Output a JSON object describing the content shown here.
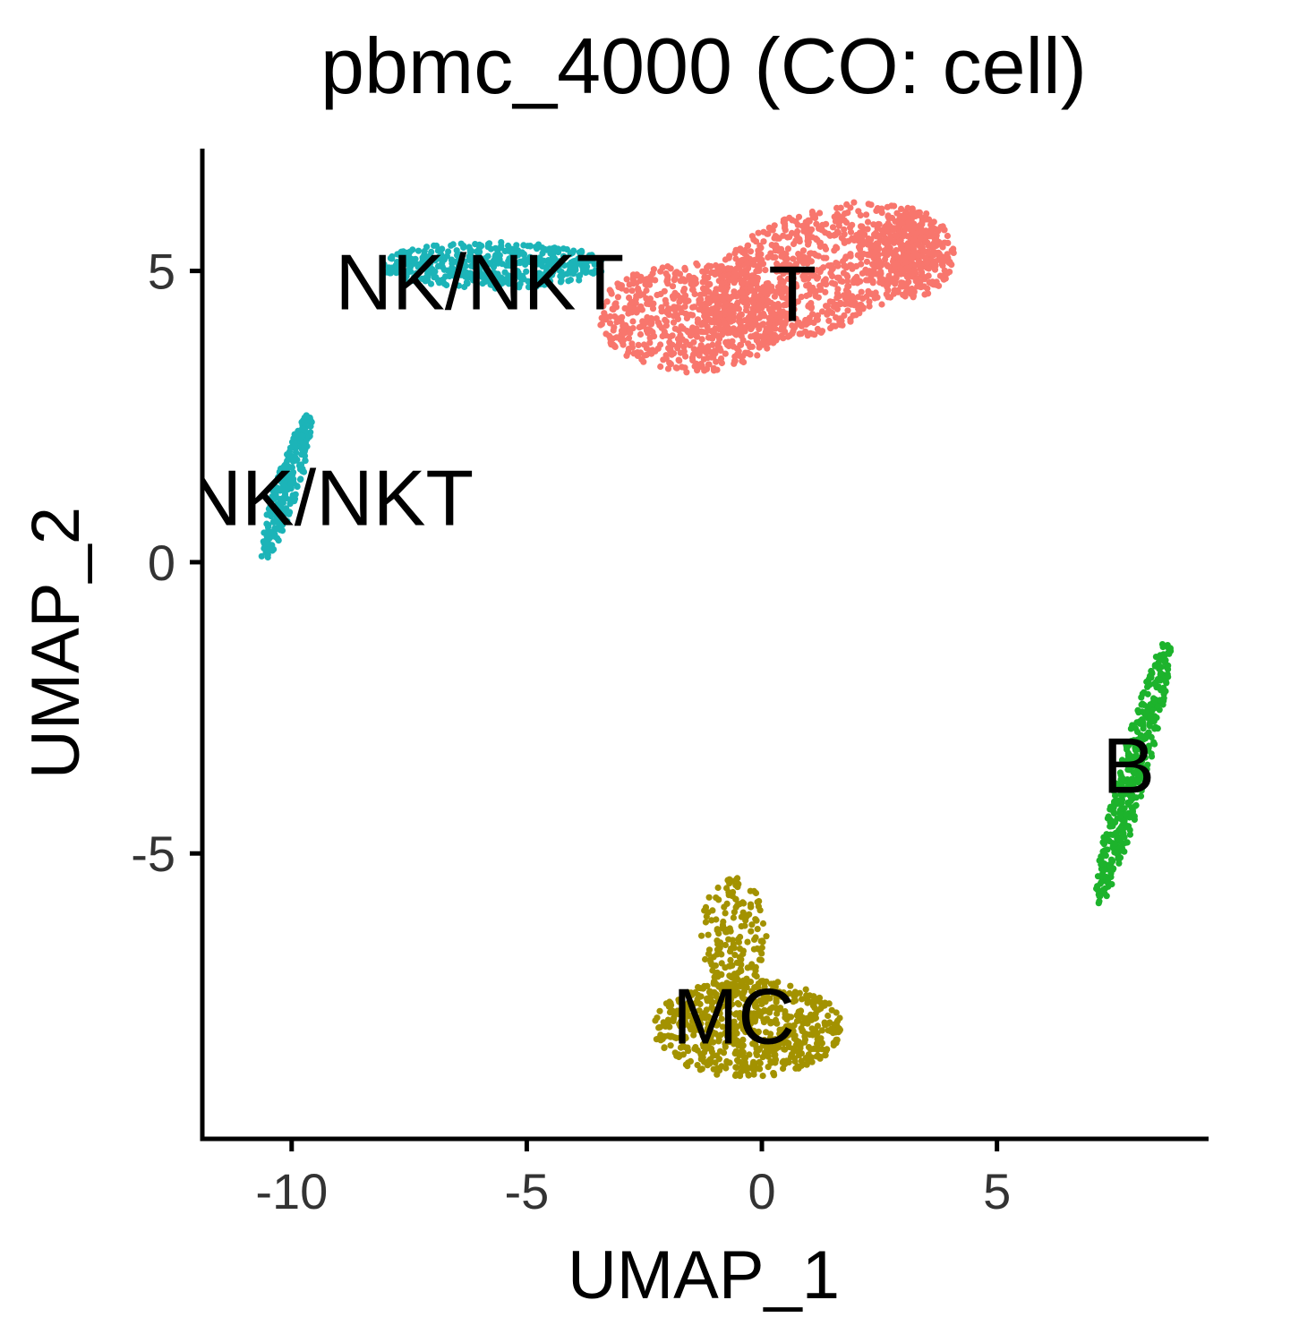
{
  "chart_data": {
    "type": "scatter",
    "title": "pbmc_4000 (CO: cell)",
    "xlabel": "UMAP_1",
    "ylabel": "UMAP_2",
    "xlim": [
      -11.9,
      9.5
    ],
    "ylim": [
      -9.9,
      7.1
    ],
    "xticks": [
      -10,
      -5,
      0,
      5
    ],
    "xtick_labels": [
      "-10",
      "-5",
      "0",
      "5"
    ],
    "yticks": [
      -5,
      0,
      5
    ],
    "ytick_labels": [
      "-5",
      "0",
      "5"
    ],
    "grid": false,
    "legend": "none",
    "series": [
      {
        "name": "T",
        "color": "#F8766D",
        "clusters": [
          {
            "cx": 1.2,
            "cy": 5.0,
            "rx": 2.6,
            "ry": 1.05,
            "rot": 14,
            "n": 900,
            "seed": 11
          },
          {
            "cx": -1.5,
            "cy": 4.2,
            "rx": 2.0,
            "ry": 0.95,
            "rot": 0,
            "n": 600,
            "seed": 12
          },
          {
            "cx": 3.2,
            "cy": 5.3,
            "rx": 0.9,
            "ry": 0.75,
            "rot": 0,
            "n": 300,
            "seed": 13
          }
        ]
      },
      {
        "name": "NK/NKT",
        "color": "#1CB4B8",
        "clusters": [
          {
            "cx": -5.7,
            "cy": 5.1,
            "rx": 2.4,
            "ry": 0.4,
            "rot": 0,
            "n": 450,
            "seed": 21
          },
          {
            "cx": -10.1,
            "cy": 1.3,
            "rx": 1.35,
            "ry": 0.25,
            "rot": 68,
            "n": 260,
            "seed": 22
          }
        ]
      },
      {
        "name": "B",
        "color": "#1DB32C",
        "clusters": [
          {
            "cx": 7.9,
            "cy": -3.6,
            "rx": 2.4,
            "ry": 0.3,
            "rot": 72,
            "n": 420,
            "seed": 31
          }
        ]
      },
      {
        "name": "MC",
        "color": "#A39200",
        "clusters": [
          {
            "cx": -0.3,
            "cy": -8.0,
            "rx": 2.0,
            "ry": 0.85,
            "rot": 0,
            "n": 650,
            "seed": 41
          },
          {
            "cx": -0.6,
            "cy": -6.4,
            "rx": 0.7,
            "ry": 1.0,
            "rot": 0,
            "n": 170,
            "seed": 42
          }
        ]
      }
    ],
    "cluster_labels": [
      {
        "text": "NK/NKT",
        "x": -6.0,
        "y": 4.8
      },
      {
        "text": "T",
        "x": 0.65,
        "y": 4.6
      },
      {
        "text": "NK/NKT",
        "x": -9.2,
        "y": 1.1
      },
      {
        "text": "B",
        "x": 7.8,
        "y": -3.5
      },
      {
        "text": "MC",
        "x": -0.6,
        "y": -7.8
      }
    ]
  }
}
